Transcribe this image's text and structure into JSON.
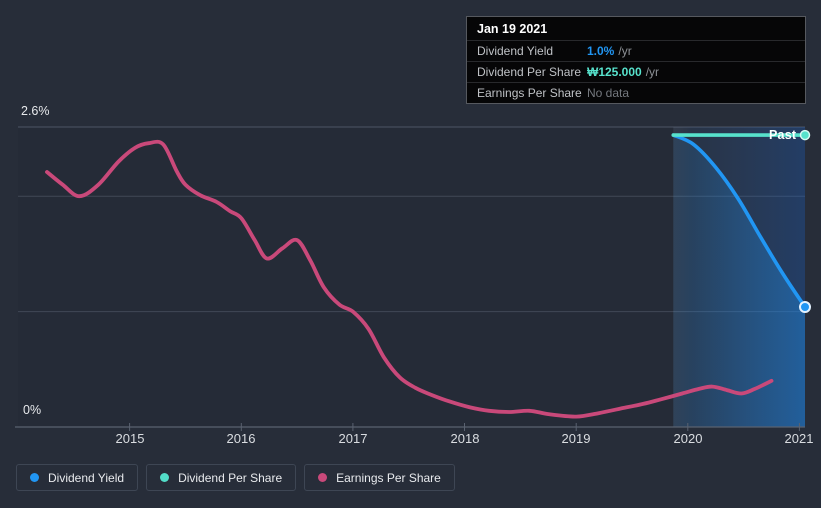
{
  "tooltip": {
    "date": "Jan 19 2021",
    "rows": [
      {
        "label": "Dividend Yield",
        "value": "1.0%",
        "suffix": "/yr",
        "value_color": "#2196f3",
        "bold": true
      },
      {
        "label": "Dividend Per Share",
        "value": "₩125.000",
        "suffix": "/yr",
        "value_color": "#57e2cc",
        "bold": true
      },
      {
        "label": "Earnings Per Share",
        "value": "No data",
        "suffix": "",
        "value_color": "#75797f",
        "bold": false
      }
    ]
  },
  "legend": [
    {
      "label": "Dividend Yield",
      "color": "#2196f3"
    },
    {
      "label": "Dividend Per Share",
      "color": "#52dcc8"
    },
    {
      "label": "Earnings Per Share",
      "color": "#c9497a"
    }
  ],
  "past_label": "Past",
  "colors": {
    "background": "#272d39",
    "accent_blue": "#2196f3",
    "accent_teal": "#57e2cc",
    "accent_pink": "#c9497a",
    "grid": "#414957",
    "grid_top": "#4d5565",
    "axis": "#5a6270",
    "tooltip_bg": "#060607"
  },
  "chart_data": {
    "type": "line",
    "title": "",
    "xlabel": "",
    "ylabel": "Dividend yield (%)",
    "xlim": [
      2014.0,
      2021.05
    ],
    "ylim": [
      0,
      2.6
    ],
    "grid": true,
    "legend_position": "bottom-left",
    "x_ticks": [
      2015,
      2016,
      2017,
      2018,
      2019,
      2020,
      2021
    ],
    "x_tick_labels": [
      "2015",
      "2016",
      "2017",
      "2018",
      "2019",
      "2020",
      "2021"
    ],
    "y_gridlines": [
      2.6,
      2.0,
      1.0
    ],
    "y_axis_labels": [
      {
        "value": 2.6,
        "label": "2.6%"
      },
      {
        "value": 0,
        "label": "0%"
      }
    ],
    "past_region_start": 2019.87,
    "series": [
      {
        "name": "Earnings Per Share",
        "color": "#c9497a",
        "area": false,
        "end_marker": false,
        "points": [
          [
            2014.26,
            2.21
          ],
          [
            2014.4,
            2.1
          ],
          [
            2014.55,
            2.0
          ],
          [
            2014.72,
            2.1
          ],
          [
            2014.9,
            2.3
          ],
          [
            2015.05,
            2.42
          ],
          [
            2015.17,
            2.46
          ],
          [
            2015.3,
            2.45
          ],
          [
            2015.42,
            2.22
          ],
          [
            2015.5,
            2.1
          ],
          [
            2015.63,
            2.01
          ],
          [
            2015.78,
            1.95
          ],
          [
            2015.9,
            1.87
          ],
          [
            2016.0,
            1.81
          ],
          [
            2016.12,
            1.62
          ],
          [
            2016.23,
            1.46
          ],
          [
            2016.37,
            1.55
          ],
          [
            2016.5,
            1.62
          ],
          [
            2016.62,
            1.44
          ],
          [
            2016.74,
            1.21
          ],
          [
            2016.88,
            1.06
          ],
          [
            2017.0,
            1.0
          ],
          [
            2017.14,
            0.85
          ],
          [
            2017.28,
            0.6
          ],
          [
            2017.42,
            0.43
          ],
          [
            2017.56,
            0.34
          ],
          [
            2017.7,
            0.28
          ],
          [
            2017.87,
            0.22
          ],
          [
            2018.05,
            0.17
          ],
          [
            2018.22,
            0.14
          ],
          [
            2018.4,
            0.13
          ],
          [
            2018.58,
            0.14
          ],
          [
            2018.76,
            0.11
          ],
          [
            2019.0,
            0.09
          ],
          [
            2019.2,
            0.12
          ],
          [
            2019.4,
            0.16
          ],
          [
            2019.6,
            0.2
          ],
          [
            2019.76,
            0.24
          ],
          [
            2019.95,
            0.29
          ],
          [
            2020.1,
            0.33
          ],
          [
            2020.22,
            0.35
          ],
          [
            2020.35,
            0.32
          ],
          [
            2020.48,
            0.29
          ],
          [
            2020.6,
            0.33
          ],
          [
            2020.75,
            0.4
          ]
        ]
      },
      {
        "name": "Dividend Yield",
        "color": "#2196f3",
        "area": true,
        "end_marker": true,
        "points": [
          [
            2019.87,
            2.53
          ],
          [
            2020.05,
            2.45
          ],
          [
            2020.25,
            2.25
          ],
          [
            2020.45,
            1.98
          ],
          [
            2020.65,
            1.65
          ],
          [
            2020.85,
            1.33
          ],
          [
            2021.05,
            1.04
          ]
        ]
      },
      {
        "name": "Dividend Per Share",
        "color": "#57e2cc",
        "area": false,
        "end_marker": true,
        "points": [
          [
            2019.87,
            2.53
          ],
          [
            2021.05,
            2.53
          ]
        ]
      }
    ]
  }
}
